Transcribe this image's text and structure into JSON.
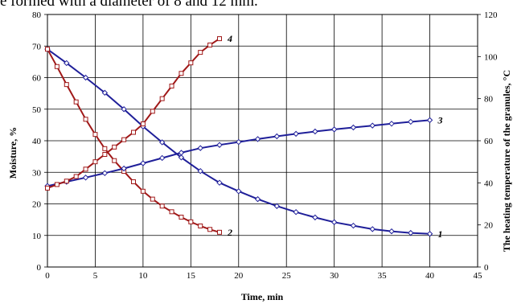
{
  "caption": "e formed with a diameter of 8 and 12 mm.",
  "chart_data": {
    "type": "line",
    "xlabel": "Time, min",
    "ylabel_left": "Moisture, %",
    "ylabel_right": "The heating temperature of the granules, °C",
    "xlim": [
      0,
      45
    ],
    "xticks": [
      0,
      5,
      10,
      15,
      20,
      25,
      30,
      35,
      40,
      45
    ],
    "ylim_left": [
      0,
      80
    ],
    "yticks_left": [
      0,
      10,
      20,
      30,
      40,
      50,
      60,
      70,
      80
    ],
    "ylim_right": [
      0,
      120
    ],
    "yticks_right": [
      0,
      20,
      40,
      60,
      80,
      100,
      120
    ],
    "grid": true,
    "series": [
      {
        "name": "1",
        "axis": "left",
        "color": "#1f1f99",
        "marker": "diamond",
        "x": [
          0,
          2,
          4,
          6,
          8,
          10,
          12,
          14,
          16,
          18,
          20,
          22,
          24,
          26,
          28,
          30,
          32,
          34,
          36,
          38,
          40
        ],
        "y": [
          69,
          64.6,
          60.0,
          55.2,
          50.0,
          44.5,
          39.5,
          34.7,
          30.4,
          26.7,
          24.0,
          21.5,
          19.3,
          17.4,
          15.7,
          14.2,
          13.1,
          12.0,
          11.3,
          10.8,
          10.5
        ]
      },
      {
        "name": "2",
        "axis": "left",
        "color": "#a01818",
        "marker": "square",
        "x": [
          0,
          1,
          2,
          3,
          4,
          5,
          6,
          7,
          8,
          9,
          10,
          11,
          12,
          13,
          14,
          15,
          16,
          17,
          18
        ],
        "y": [
          69,
          63.5,
          57.8,
          52.3,
          46.8,
          42.0,
          37.5,
          33.7,
          30.3,
          27.0,
          24.0,
          21.5,
          19.3,
          17.5,
          15.8,
          14.3,
          13.0,
          11.9,
          11.0
        ]
      },
      {
        "name": "3",
        "axis": "right",
        "color": "#1f1f99",
        "marker": "diamond",
        "x": [
          0,
          2,
          4,
          6,
          8,
          10,
          12,
          14,
          16,
          18,
          20,
          22,
          24,
          26,
          28,
          30,
          32,
          34,
          36,
          38,
          40
        ],
        "y": [
          38.5,
          40.5,
          42.5,
          44.6,
          46.8,
          49.3,
          51.8,
          54.3,
          56.5,
          58.0,
          59.4,
          60.8,
          62.1,
          63.3,
          64.4,
          65.4,
          66.3,
          67.2,
          68.1,
          69.0,
          69.8
        ]
      },
      {
        "name": "4",
        "axis": "right",
        "color": "#a01818",
        "marker": "square",
        "x": [
          0,
          1,
          2,
          3,
          4,
          5,
          6,
          7,
          8,
          9,
          10,
          11,
          12,
          13,
          14,
          15,
          16,
          17,
          18
        ],
        "y": [
          37.5,
          39.2,
          40.8,
          43.0,
          46.5,
          50.0,
          53.5,
          57.0,
          60.5,
          64.0,
          68.0,
          74.0,
          80.0,
          86.0,
          92.0,
          97.0,
          102.0,
          105.5,
          108.5
        ]
      }
    ]
  }
}
